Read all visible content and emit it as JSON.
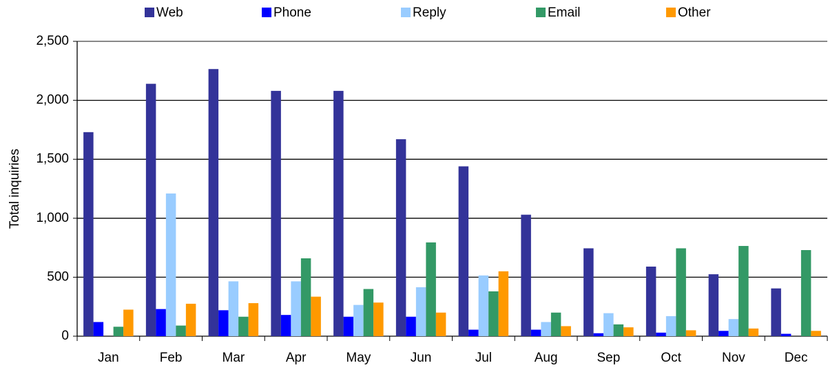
{
  "chart_data": {
    "type": "bar",
    "y_label": "Total inquiries",
    "categories": [
      "Jan",
      "Feb",
      "Mar",
      "Apr",
      "May",
      "Jun",
      "Jul",
      "Aug",
      "Sep",
      "Oct",
      "Nov",
      "Dec"
    ],
    "series": [
      {
        "name": "Web",
        "color": "#333399",
        "values": [
          1730,
          2140,
          2265,
          2080,
          2080,
          1670,
          1440,
          1030,
          745,
          590,
          525,
          405
        ]
      },
      {
        "name": "Phone",
        "color": "#0000ff",
        "values": [
          120,
          230,
          220,
          180,
          165,
          165,
          55,
          55,
          25,
          30,
          45,
          20
        ]
      },
      {
        "name": "Reply",
        "color": "#99ccff",
        "values": [
          0,
          1210,
          465,
          465,
          265,
          415,
          515,
          120,
          195,
          170,
          145,
          0
        ]
      },
      {
        "name": "Email",
        "color": "#339966",
        "values": [
          80,
          90,
          165,
          660,
          400,
          795,
          380,
          200,
          100,
          745,
          765,
          730
        ]
      },
      {
        "name": "Other",
        "color": "#ff9900",
        "values": [
          225,
          275,
          280,
          335,
          285,
          200,
          550,
          85,
          75,
          50,
          65,
          45
        ]
      }
    ],
    "ylim": [
      0,
      2500
    ],
    "yticks": [
      0,
      500,
      {
        "value": 1000,
        "label": "1,000"
      },
      {
        "value": 1500,
        "label": "1,500"
      },
      {
        "value": 2000,
        "label": "2,000"
      },
      {
        "value": 2500,
        "label": "2,500"
      }
    ],
    "grid": true,
    "legend": "top"
  }
}
